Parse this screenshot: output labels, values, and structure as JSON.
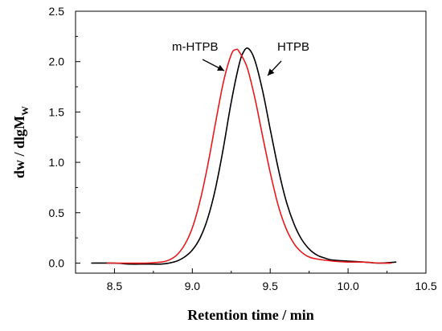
{
  "chart_data": {
    "type": "line",
    "xlabel": "Retention time / min",
    "ylabel": {
      "main": "dw / dlgM",
      "subscript": "W"
    },
    "xlim": [
      8.25,
      10.5
    ],
    "ylim": [
      -0.1,
      2.5
    ],
    "xticks": [
      "8.5",
      "9.0",
      "9.5",
      "10.0",
      "10.5"
    ],
    "yticks": [
      "0.0",
      "0.5",
      "1.0",
      "1.5",
      "2.0",
      "2.5"
    ],
    "grid": false,
    "legend": "none",
    "annotations": [
      {
        "text": "m-HTPB",
        "series": 0
      },
      {
        "text": "HTPB",
        "series": 1
      }
    ],
    "series": [
      {
        "name": "m-HTPB",
        "color": "#e8191c",
        "x": [
          8.45,
          8.6,
          8.7,
          8.8,
          8.85,
          8.9,
          8.95,
          9.0,
          9.05,
          9.1,
          9.15,
          9.2,
          9.25,
          9.28,
          9.3,
          9.35,
          9.4,
          9.45,
          9.5,
          9.55,
          9.6,
          9.65,
          9.7,
          9.75,
          9.8,
          9.9,
          10.0,
          10.1,
          10.2,
          10.28
        ],
        "y": [
          0.0,
          0.0,
          0.0,
          0.01,
          0.03,
          0.08,
          0.18,
          0.35,
          0.62,
          0.98,
          1.4,
          1.8,
          2.07,
          2.12,
          2.1,
          1.95,
          1.65,
          1.27,
          0.9,
          0.58,
          0.35,
          0.2,
          0.11,
          0.06,
          0.04,
          0.02,
          0.01,
          0.01,
          0.0,
          0.0
        ]
      },
      {
        "name": "HTPB",
        "color": "#000000",
        "x": [
          8.35,
          8.5,
          8.6,
          8.7,
          8.8,
          8.85,
          8.9,
          8.95,
          9.0,
          9.05,
          9.1,
          9.15,
          9.2,
          9.25,
          9.3,
          9.33,
          9.36,
          9.4,
          9.45,
          9.5,
          9.55,
          9.6,
          9.65,
          9.7,
          9.75,
          9.8,
          9.85,
          9.9,
          10.0,
          10.1,
          10.2,
          10.31
        ],
        "y": [
          0.0,
          0.0,
          -0.01,
          -0.01,
          -0.01,
          0.0,
          0.02,
          0.06,
          0.13,
          0.25,
          0.45,
          0.75,
          1.15,
          1.6,
          1.97,
          2.1,
          2.13,
          2.02,
          1.72,
          1.33,
          0.95,
          0.63,
          0.4,
          0.24,
          0.14,
          0.08,
          0.05,
          0.03,
          0.02,
          0.01,
          0.0,
          0.01
        ]
      }
    ]
  }
}
